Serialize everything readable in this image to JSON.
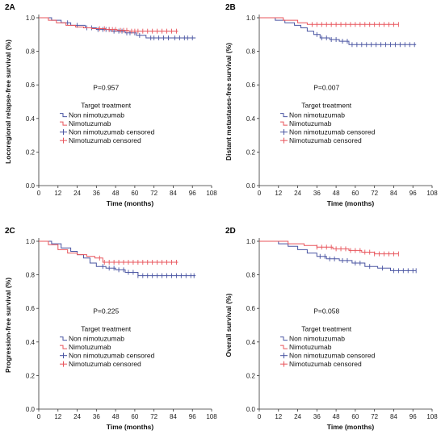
{
  "chart_data": [
    {
      "type": "line",
      "panel_label": "2A",
      "ylabel": "Locoregional relapse-free survival (%)",
      "xlabel": "Time (months)",
      "p_value": "P=0.957",
      "legend_title": "Target treatment",
      "legend": [
        "Non nimotuzumab",
        "Nimotuzumab",
        "Non nimotuzumab censored",
        "Nimotuzumab censored"
      ],
      "xlim": [
        0,
        108
      ],
      "ylim": [
        0.0,
        1.0
      ],
      "xticks": [
        "0",
        "12",
        "24",
        "36",
        "48",
        "60",
        "72",
        "84",
        "96",
        "108"
      ],
      "yticks": [
        "0.0",
        "0.2",
        "0.4",
        "0.6",
        "0.8",
        "1.0"
      ],
      "series": [
        {
          "name": "Non nimotuzumab",
          "color": "#4a55a2",
          "x": [
            0,
            8,
            14,
            20,
            29,
            36,
            45,
            54,
            61,
            67,
            98
          ],
          "y": [
            1.0,
            0.985,
            0.97,
            0.955,
            0.94,
            0.93,
            0.92,
            0.91,
            0.895,
            0.88,
            0.88
          ],
          "censored": [
            18,
            24,
            30,
            33,
            37,
            40,
            42,
            44,
            47,
            50,
            52,
            55,
            57,
            60,
            63,
            70,
            72,
            75,
            78,
            81,
            85,
            88,
            91,
            93,
            96
          ]
        },
        {
          "name": "Nimotuzumab",
          "color": "#e8545b",
          "x": [
            0,
            6,
            11,
            17,
            23,
            28,
            33,
            42,
            49,
            56,
            87
          ],
          "y": [
            1.0,
            0.985,
            0.97,
            0.955,
            0.945,
            0.94,
            0.935,
            0.93,
            0.925,
            0.92,
            0.92
          ],
          "censored": [
            38,
            41,
            44,
            46,
            48,
            51,
            53,
            55,
            58,
            60,
            62,
            65,
            68,
            71,
            74,
            77,
            80,
            83,
            86
          ]
        }
      ]
    },
    {
      "type": "line",
      "panel_label": "2B",
      "ylabel": "Distant metastases-free survival (%)",
      "xlabel": "Time (months)",
      "p_value": "P=0.007",
      "legend_title": "Target treatment",
      "legend": [
        "Non nimotuzumab",
        "Nimotuzumab",
        "Non nimotuzumab censored",
        "Nimotuzumab censored"
      ],
      "xlim": [
        0,
        108
      ],
      "ylim": [
        0.0,
        1.0
      ],
      "xticks": [
        "0",
        "12",
        "24",
        "36",
        "48",
        "60",
        "72",
        "84",
        "96",
        "108"
      ],
      "yticks": [
        "0.0",
        "0.2",
        "0.4",
        "0.6",
        "0.8",
        "1.0"
      ],
      "series": [
        {
          "name": "Non nimotuzumab",
          "color": "#4a55a2",
          "x": [
            0,
            10,
            16,
            22,
            26,
            30,
            34,
            38,
            44,
            50,
            56,
            98
          ],
          "y": [
            1.0,
            0.985,
            0.97,
            0.955,
            0.94,
            0.92,
            0.9,
            0.88,
            0.87,
            0.86,
            0.84,
            0.84
          ],
          "censored": [
            36,
            39,
            42,
            45,
            48,
            52,
            55,
            58,
            61,
            64,
            67,
            70,
            73,
            76,
            79,
            82,
            85,
            88,
            91,
            94,
            97
          ]
        },
        {
          "name": "Nimotuzumab",
          "color": "#e8545b",
          "x": [
            0,
            15,
            24,
            30,
            87
          ],
          "y": [
            1.0,
            0.985,
            0.97,
            0.96,
            0.96
          ],
          "censored": [
            33,
            36,
            39,
            42,
            45,
            48,
            51,
            54,
            57,
            60,
            63,
            66,
            69,
            72,
            75,
            78,
            81,
            84,
            87
          ]
        }
      ]
    },
    {
      "type": "line",
      "panel_label": "2C",
      "ylabel": "Progression-free survival (%)",
      "xlabel": "Time (months)",
      "p_value": "P=0.225",
      "legend_title": "Target treatment",
      "legend": [
        "Non nimotuzumab",
        "Nimotuzumab",
        "Non nimotuzumab censored",
        "Nimotuzumab censored"
      ],
      "xlim": [
        0,
        108
      ],
      "ylim": [
        0.0,
        1.0
      ],
      "xticks": [
        "0",
        "12",
        "24",
        "36",
        "48",
        "60",
        "72",
        "84",
        "96",
        "108"
      ],
      "yticks": [
        "0.0",
        "0.2",
        "0.4",
        "0.6",
        "0.8",
        "1.0"
      ],
      "series": [
        {
          "name": "Non nimotuzumab",
          "color": "#4a55a2",
          "x": [
            0,
            8,
            14,
            20,
            24,
            28,
            32,
            36,
            42,
            48,
            54,
            62,
            98
          ],
          "y": [
            1.0,
            0.985,
            0.96,
            0.94,
            0.92,
            0.9,
            0.87,
            0.85,
            0.84,
            0.83,
            0.815,
            0.795,
            0.795
          ],
          "censored": [
            40,
            44,
            47,
            50,
            53,
            56,
            59,
            62,
            65,
            68,
            71,
            74,
            77,
            80,
            83,
            86,
            89,
            92,
            95,
            97
          ]
        },
        {
          "name": "Nimotuzumab",
          "color": "#e8545b",
          "x": [
            0,
            6,
            12,
            18,
            24,
            30,
            35,
            40,
            87
          ],
          "y": [
            1.0,
            0.98,
            0.95,
            0.93,
            0.92,
            0.91,
            0.9,
            0.875,
            0.875
          ],
          "censored": [
            38,
            41,
            44,
            47,
            50,
            53,
            56,
            59,
            62,
            65,
            68,
            71,
            74,
            77,
            80,
            83,
            86
          ]
        }
      ]
    },
    {
      "type": "line",
      "panel_label": "2D",
      "ylabel": "Overall survival (%)",
      "xlabel": "Time (months)",
      "p_value": "P=0.058",
      "legend_title": "Target treatment",
      "legend": [
        "Non nimotuzumab",
        "Nimotuzumab",
        "Non nimotuzumab censored",
        "Nimotuzumab censored"
      ],
      "xlim": [
        0,
        108
      ],
      "ylim": [
        0.0,
        1.0
      ],
      "xticks": [
        "0",
        "12",
        "24",
        "36",
        "48",
        "60",
        "72",
        "84",
        "96",
        "108"
      ],
      "yticks": [
        "0.0",
        "0.2",
        "0.4",
        "0.6",
        "0.8",
        "1.0"
      ],
      "series": [
        {
          "name": "Non nimotuzumab",
          "color": "#4a55a2",
          "x": [
            0,
            12,
            18,
            24,
            30,
            36,
            42,
            50,
            58,
            66,
            74,
            82,
            98
          ],
          "y": [
            1.0,
            0.985,
            0.97,
            0.95,
            0.93,
            0.91,
            0.895,
            0.885,
            0.87,
            0.85,
            0.84,
            0.825,
            0.825
          ],
          "censored": [
            38,
            41,
            44,
            47,
            52,
            55,
            60,
            63,
            69,
            77,
            84,
            87,
            90,
            93,
            96,
            98
          ]
        },
        {
          "name": "Nimotuzumab",
          "color": "#e8545b",
          "x": [
            0,
            18,
            28,
            36,
            46,
            56,
            64,
            72,
            87
          ],
          "y": [
            1.0,
            0.985,
            0.975,
            0.965,
            0.955,
            0.945,
            0.935,
            0.925,
            0.925
          ],
          "censored": [
            36,
            39,
            42,
            45,
            48,
            51,
            54,
            57,
            60,
            63,
            66,
            69,
            72,
            75,
            78,
            81,
            84,
            87
          ]
        }
      ]
    }
  ]
}
